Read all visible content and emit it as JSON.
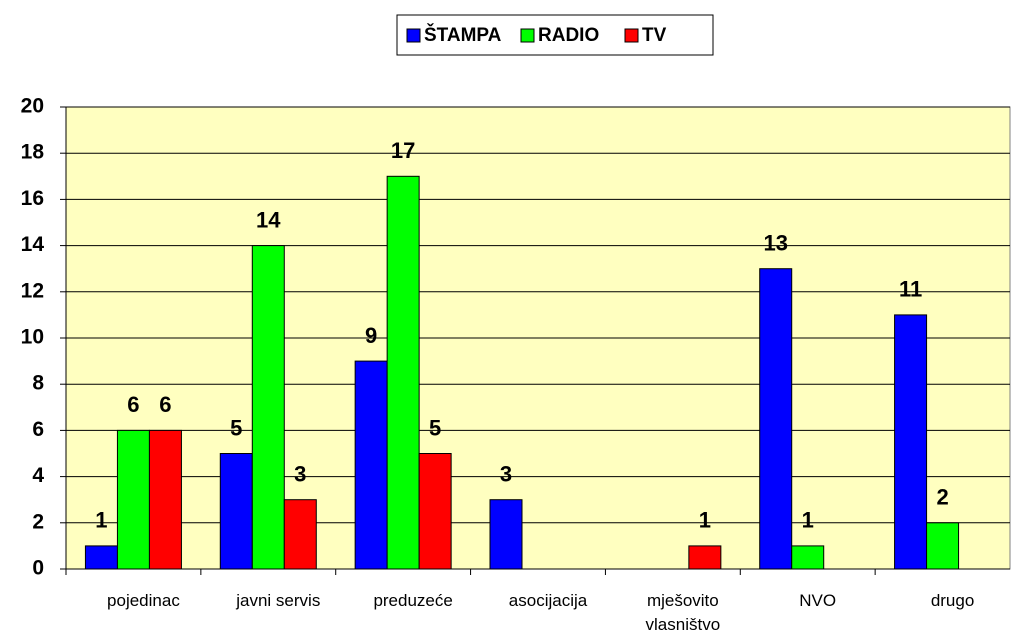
{
  "chart_data": {
    "type": "bar",
    "categories": [
      "pojedinac",
      "javni servis",
      "preduzeće",
      "asocijacija",
      "mješovito vlasništvo",
      "NVO",
      "drugo"
    ],
    "series": [
      {
        "name": "ŠTAMPA",
        "color": "#0000ff",
        "values": [
          1,
          5,
          9,
          3,
          null,
          13,
          11
        ]
      },
      {
        "name": "RADIO",
        "color": "#00ff00",
        "values": [
          6,
          14,
          17,
          null,
          null,
          1,
          2
        ]
      },
      {
        "name": "TV",
        "color": "#ff0000",
        "values": [
          6,
          3,
          5,
          null,
          1,
          null,
          null
        ]
      }
    ],
    "ylim": [
      0,
      20
    ],
    "yticks": [
      0,
      2,
      4,
      6,
      8,
      10,
      12,
      14,
      16,
      18,
      20
    ],
    "grid": true,
    "legend": "top"
  }
}
